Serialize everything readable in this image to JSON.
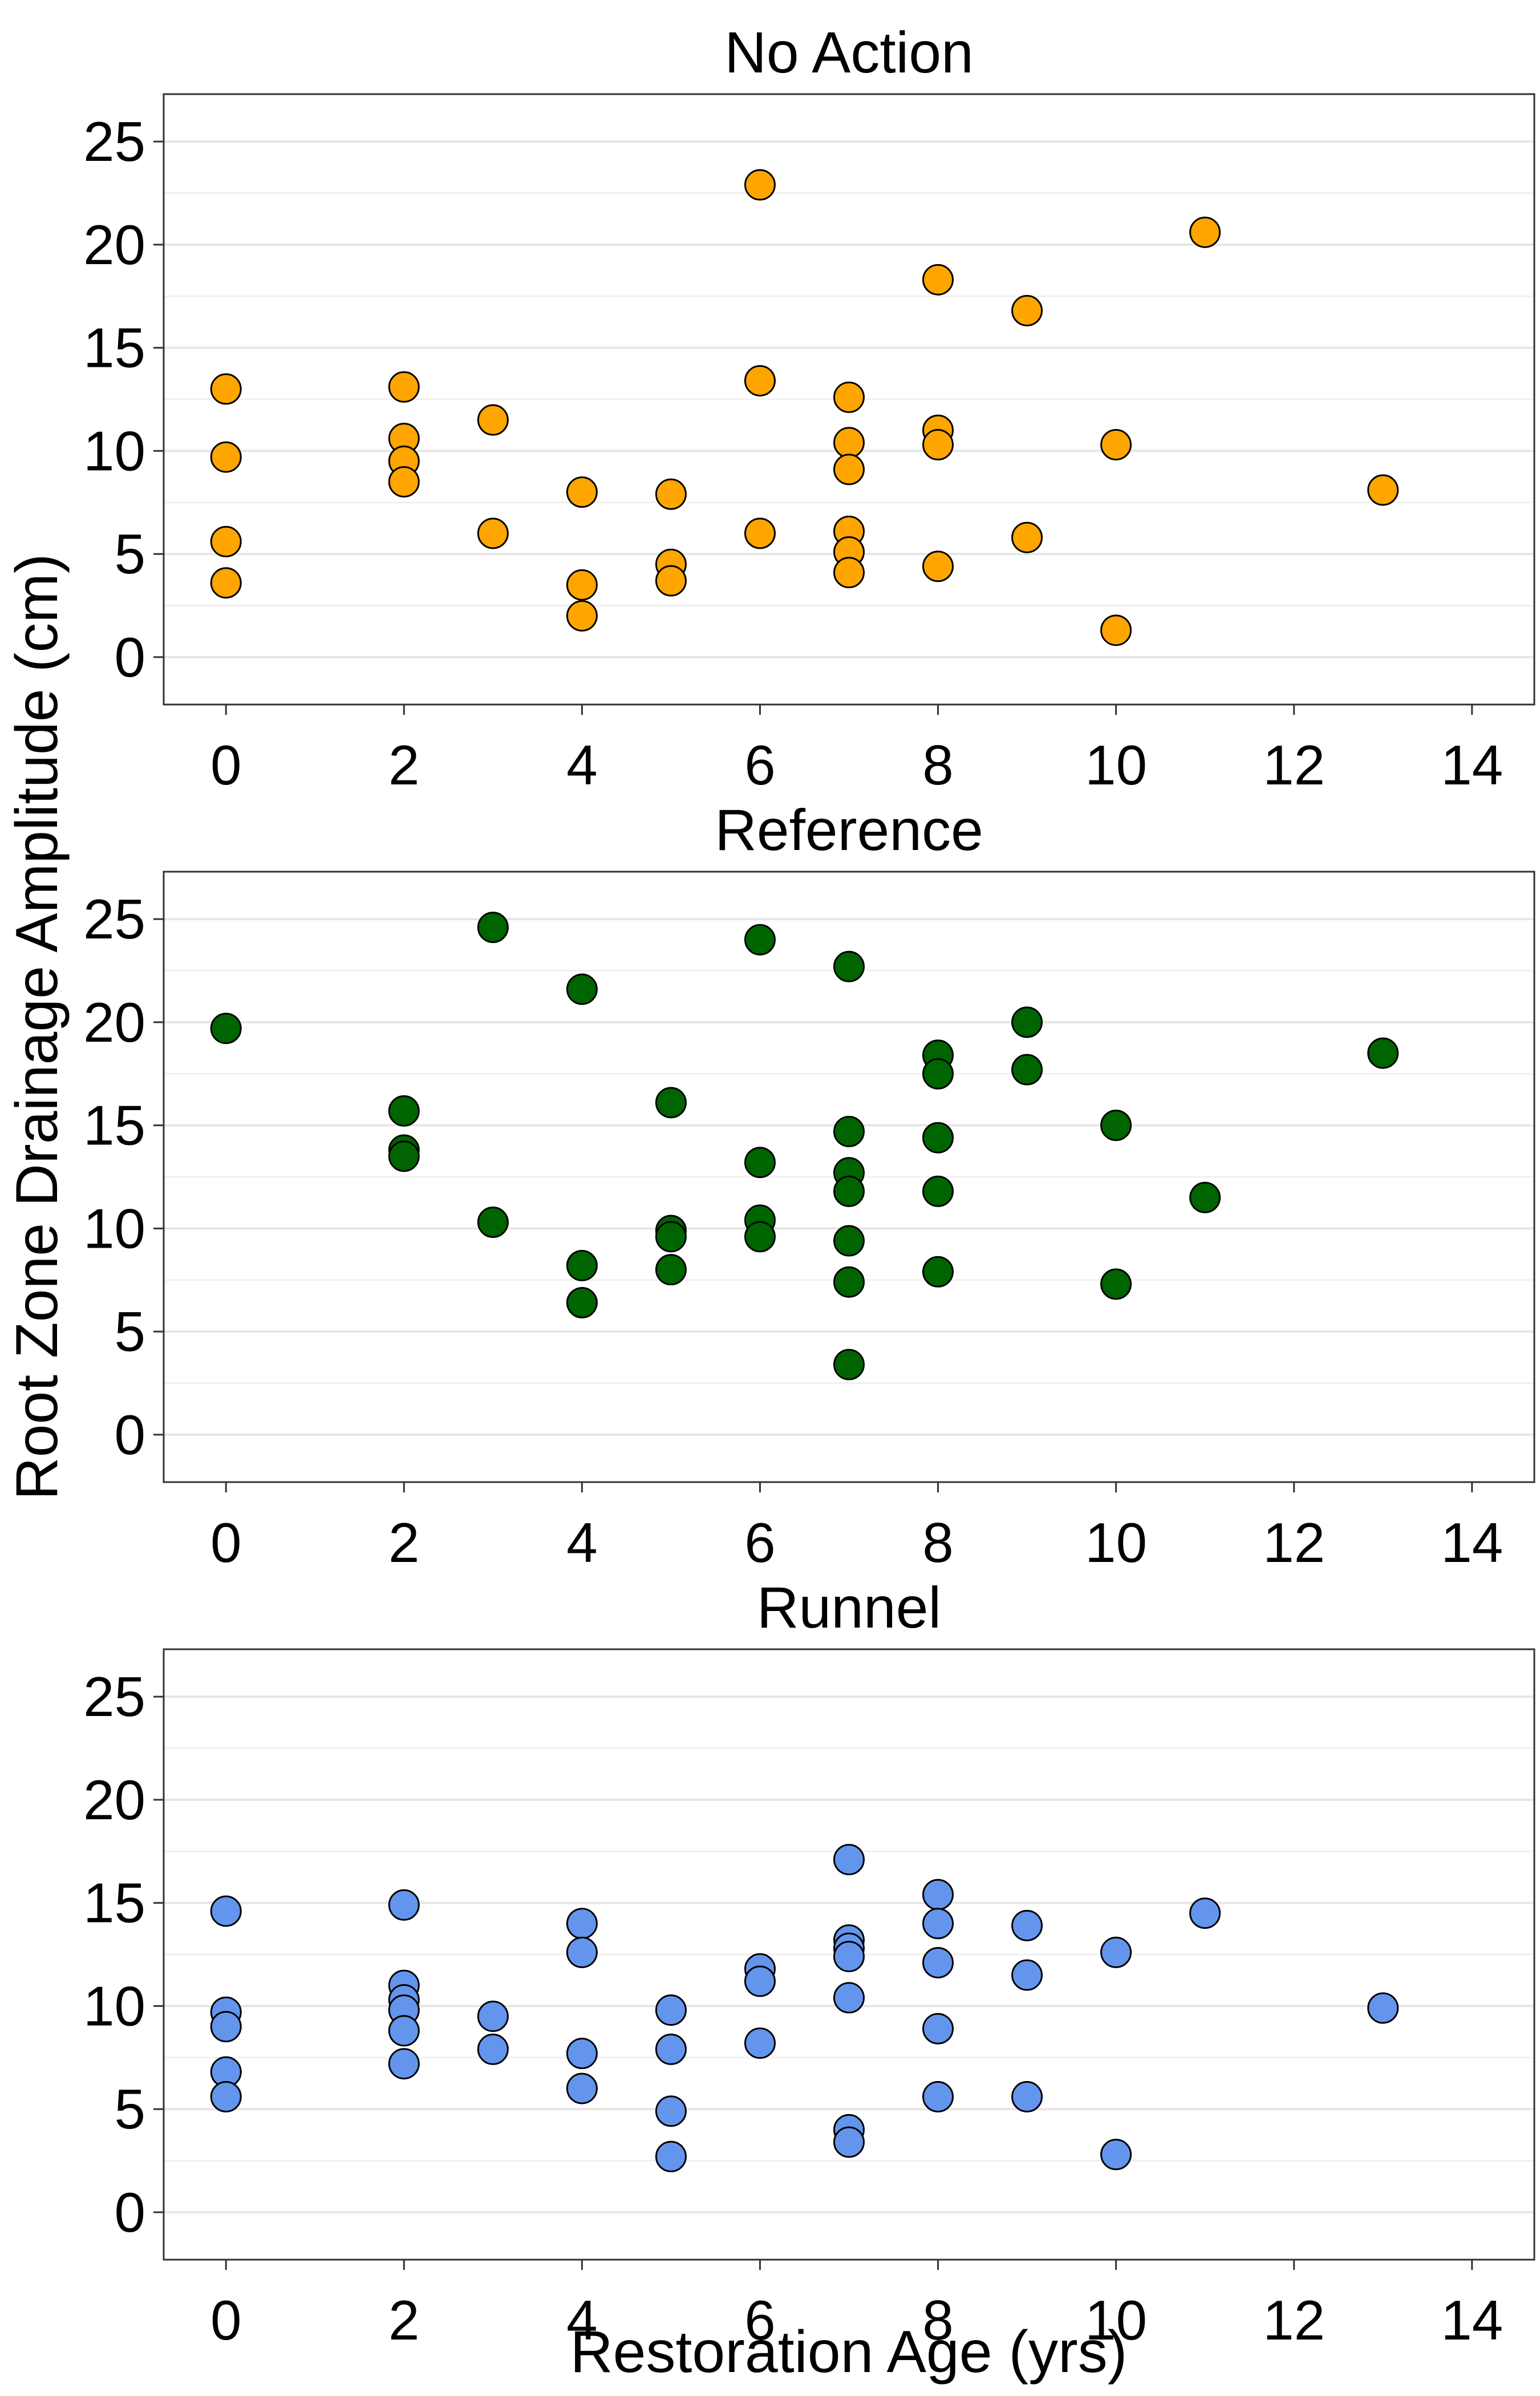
{
  "y_axis_title": "Root Zone Drainage Amplitude (cm)",
  "x_axis_title": "Restoration Age (yrs)",
  "chart_data": [
    {
      "type": "scatter",
      "title": "No Action",
      "color": "#FFA500",
      "xlabel": "Restoration Age (yrs)",
      "ylabel": "Root Zone Drainage Amplitude (cm)",
      "xlim": [
        -0.7,
        14.7
      ],
      "ylim": [
        -2.3,
        27.3
      ],
      "xticks": [
        "0",
        "2",
        "4",
        "6",
        "8",
        "10",
        "12",
        "14"
      ],
      "yticks": [
        "0",
        "5",
        "10",
        "15",
        "20",
        "25"
      ],
      "grid": "horizontal",
      "points": [
        [
          0,
          13.0
        ],
        [
          0,
          9.7
        ],
        [
          0,
          5.6
        ],
        [
          0,
          3.6
        ],
        [
          2,
          13.1
        ],
        [
          2,
          10.6
        ],
        [
          2,
          9.5
        ],
        [
          2,
          8.5
        ],
        [
          3,
          11.5
        ],
        [
          3,
          6.0
        ],
        [
          4,
          8.0
        ],
        [
          4,
          3.5
        ],
        [
          4,
          2.0
        ],
        [
          5,
          7.9
        ],
        [
          5,
          4.5
        ],
        [
          5,
          3.7
        ],
        [
          6,
          22.9
        ],
        [
          6,
          13.4
        ],
        [
          6,
          6.0
        ],
        [
          7,
          12.6
        ],
        [
          7,
          10.4
        ],
        [
          7,
          9.1
        ],
        [
          7,
          6.1
        ],
        [
          7,
          5.1
        ],
        [
          7,
          4.1
        ],
        [
          8,
          18.3
        ],
        [
          8,
          11.0
        ],
        [
          8,
          10.3
        ],
        [
          8,
          4.4
        ],
        [
          9,
          16.8
        ],
        [
          9,
          5.8
        ],
        [
          10,
          10.3
        ],
        [
          10,
          1.3
        ],
        [
          11,
          20.6
        ],
        [
          13,
          8.1
        ]
      ]
    },
    {
      "type": "scatter",
      "title": "Reference",
      "color": "#006400",
      "xlabel": "Restoration Age (yrs)",
      "ylabel": "Root Zone Drainage Amplitude (cm)",
      "xlim": [
        -0.7,
        14.7
      ],
      "ylim": [
        -2.3,
        27.3
      ],
      "xticks": [
        "0",
        "2",
        "4",
        "6",
        "8",
        "10",
        "12",
        "14"
      ],
      "yticks": [
        "0",
        "5",
        "10",
        "15",
        "20",
        "25"
      ],
      "grid": "horizontal",
      "points": [
        [
          0,
          19.7
        ],
        [
          2,
          15.7
        ],
        [
          2,
          13.8
        ],
        [
          2,
          13.5
        ],
        [
          3,
          24.6
        ],
        [
          3,
          10.3
        ],
        [
          4,
          21.6
        ],
        [
          4,
          8.2
        ],
        [
          4,
          6.4
        ],
        [
          5,
          16.1
        ],
        [
          5,
          9.9
        ],
        [
          5,
          9.6
        ],
        [
          5,
          8.0
        ],
        [
          6,
          24.0
        ],
        [
          6,
          13.2
        ],
        [
          6,
          10.4
        ],
        [
          6,
          9.6
        ],
        [
          7,
          22.7
        ],
        [
          7,
          14.7
        ],
        [
          7,
          12.7
        ],
        [
          7,
          11.8
        ],
        [
          7,
          9.4
        ],
        [
          7,
          7.4
        ],
        [
          7,
          3.4
        ],
        [
          8,
          18.4
        ],
        [
          8,
          17.5
        ],
        [
          8,
          14.4
        ],
        [
          8,
          11.8
        ],
        [
          8,
          7.9
        ],
        [
          9,
          20.0
        ],
        [
          9,
          17.7
        ],
        [
          10,
          15.0
        ],
        [
          10,
          7.3
        ],
        [
          11,
          11.5
        ],
        [
          13,
          18.5
        ]
      ]
    },
    {
      "type": "scatter",
      "title": "Runnel",
      "color": "#6495ED",
      "xlabel": "Restoration Age (yrs)",
      "ylabel": "Root Zone Drainage Amplitude (cm)",
      "xlim": [
        -0.7,
        14.7
      ],
      "ylim": [
        -2.3,
        27.3
      ],
      "xticks": [
        "0",
        "2",
        "4",
        "6",
        "8",
        "10",
        "12",
        "14"
      ],
      "yticks": [
        "0",
        "5",
        "10",
        "15",
        "20",
        "25"
      ],
      "grid": "horizontal",
      "points": [
        [
          0,
          14.6
        ],
        [
          0,
          9.7
        ],
        [
          0,
          9.0
        ],
        [
          0,
          6.8
        ],
        [
          0,
          5.6
        ],
        [
          2,
          14.9
        ],
        [
          2,
          11.0
        ],
        [
          2,
          10.3
        ],
        [
          2,
          9.8
        ],
        [
          2,
          8.8
        ],
        [
          2,
          7.2
        ],
        [
          3,
          9.5
        ],
        [
          3,
          7.9
        ],
        [
          4,
          14.0
        ],
        [
          4,
          12.6
        ],
        [
          4,
          7.7
        ],
        [
          4,
          6.0
        ],
        [
          5,
          9.8
        ],
        [
          5,
          7.9
        ],
        [
          5,
          4.9
        ],
        [
          5,
          2.7
        ],
        [
          6,
          11.8
        ],
        [
          6,
          11.2
        ],
        [
          6,
          8.2
        ],
        [
          7,
          17.1
        ],
        [
          7,
          13.2
        ],
        [
          7,
          12.8
        ],
        [
          7,
          12.4
        ],
        [
          7,
          10.4
        ],
        [
          7,
          4.0
        ],
        [
          7,
          3.4
        ],
        [
          8,
          15.4
        ],
        [
          8,
          14.0
        ],
        [
          8,
          12.1
        ],
        [
          8,
          8.9
        ],
        [
          8,
          5.6
        ],
        [
          9,
          13.9
        ],
        [
          9,
          11.5
        ],
        [
          9,
          5.6
        ],
        [
          10,
          12.6
        ],
        [
          10,
          2.8
        ],
        [
          11,
          14.5
        ],
        [
          13,
          9.9
        ]
      ]
    }
  ]
}
